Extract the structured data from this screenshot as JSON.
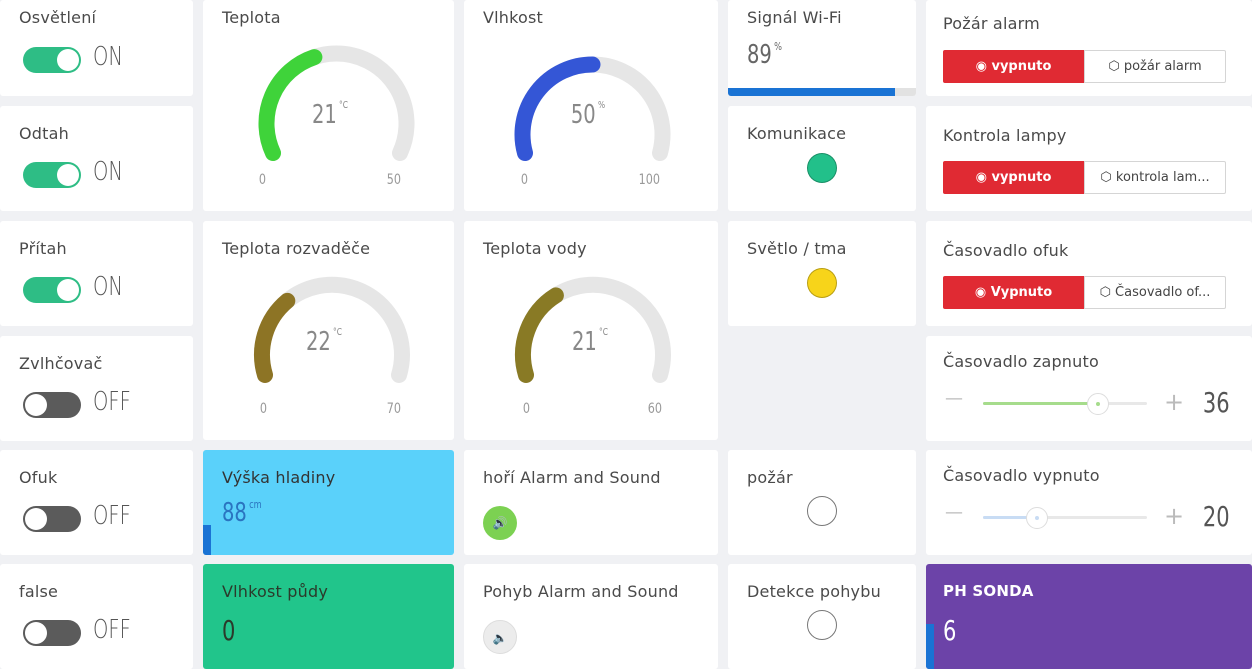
{
  "switches": [
    {
      "label": "Osvětlení",
      "state": "ON"
    },
    {
      "label": "Odtah",
      "state": "ON"
    },
    {
      "label": "Přítah",
      "state": "ON"
    },
    {
      "label": "Zvlhčovač",
      "state": "OFF"
    },
    {
      "label": "Ofuk",
      "state": "OFF"
    },
    {
      "label": "false",
      "state": "OFF"
    }
  ],
  "gauges": {
    "teplota": {
      "title": "Teplota",
      "value": "21",
      "unit": "°C",
      "min": "0",
      "max": "50",
      "color": "#3fd33a"
    },
    "vlhkost": {
      "title": "Vlhkost",
      "value": "50",
      "unit": "%",
      "min": "0",
      "max": "100",
      "color": "#3456d6"
    },
    "teplota_rozvadece": {
      "title": "Teplota rozvaděče",
      "value": "22",
      "unit": "°C",
      "min": "0",
      "max": "70",
      "color": "#8d7425"
    },
    "teplota_vody": {
      "title": "Teplota vody",
      "value": "21",
      "unit": "°C",
      "min": "0",
      "max": "60",
      "color": "#897a25"
    }
  },
  "wifi": {
    "title": "Signál Wi-Fi",
    "value": "89",
    "unit": "%",
    "color": "#1a73d4"
  },
  "leds": {
    "komunikace": {
      "title": "Komunikace",
      "color": "#22c08a"
    },
    "svetlo": {
      "title": "Světlo / tma",
      "color": "#f7d41a"
    },
    "pozar": {
      "title": "požár",
      "color": "#ffffff"
    },
    "detekce": {
      "title": "Detekce pohybu",
      "color": "#ffffff"
    }
  },
  "button_pairs": [
    {
      "title": "Požár alarm",
      "red_label": "vypnuto",
      "white_label": "požár alarm"
    },
    {
      "title": "Kontrola lampy",
      "red_label": "vypnuto",
      "white_label": "kontrola lam..."
    },
    {
      "title": "Časovadlo ofuk",
      "red_label": "Vypnuto",
      "white_label": "Časovadlo of..."
    }
  ],
  "sliders": [
    {
      "title": "Časovadlo zapnuto",
      "minus": "—",
      "plus": "+",
      "value": "36",
      "level": 0.7,
      "color": "#a6dc8c"
    },
    {
      "title": "Časovadlo vypnuto",
      "minus": "—",
      "plus": "+",
      "value": "20",
      "level": 0.33,
      "color": "#c8dcf4"
    }
  ],
  "displays": {
    "vyska": {
      "title": "Výška hladiny",
      "value": "88",
      "unit": "cm",
      "bg": "#5ad1fa",
      "bar": "#1a73d4"
    },
    "vlhkost_pudy": {
      "title": "Vlhkost půdy",
      "value": "0",
      "bg": "#21c58b"
    },
    "ph": {
      "title": "PH SONDA",
      "value": "6",
      "bg": "#6c43a8",
      "bar": "#1a73d4"
    }
  },
  "alarms": [
    {
      "title": "hoří Alarm and Sound",
      "active": true
    },
    {
      "title": "Pohyb Alarm and Sound",
      "active": false
    }
  ]
}
